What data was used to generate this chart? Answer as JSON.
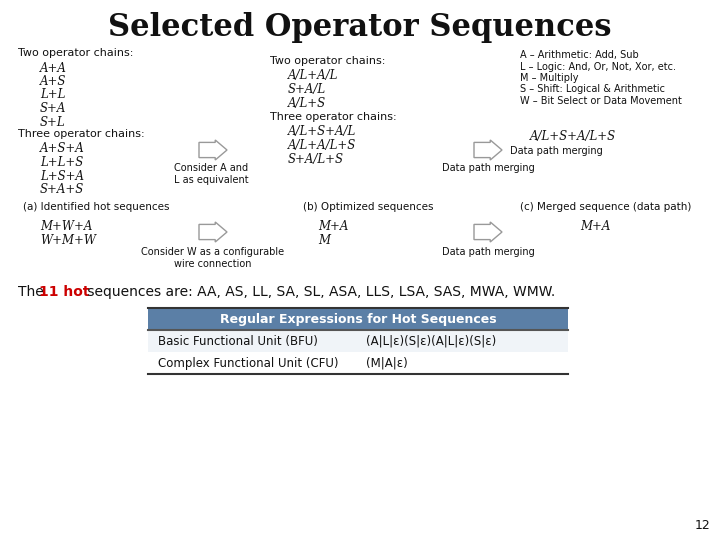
{
  "title": "Selected Operator Sequences",
  "bg_color": "#ffffff",
  "title_fontsize": 22,
  "two_op_label": "Two operator chains:",
  "two_op_items": [
    "A+A",
    "A+S",
    "L+L",
    "S+A",
    "S+L"
  ],
  "three_op_label": "Three operator chains:",
  "three_op_items": [
    "A+S+A",
    "L+L+S",
    "L+S+A",
    "S+A+S"
  ],
  "arrow1_note": "Consider A and\nL as equivalent",
  "two_op_opt_label": "Two operator chains:",
  "two_op_opt_items": [
    "A/L+A/L",
    "S+A/L",
    "A/L+S"
  ],
  "three_op_opt_label": "Three operator chains:",
  "three_op_opt_items": [
    "A/L+S+A/L",
    "A/L+A/L+S",
    "S+A/L+S"
  ],
  "merged_label": "A/L+S+A/L+S",
  "arrow2_note": "Data path merging",
  "legend_lines": [
    "A – Arithmetic: Add, Sub",
    "L – Logic: And, Or, Not, Xor, etc.",
    "M – Multiply",
    "S – Shift: Logical & Arithmetic",
    "W – Bit Select or Data Movement"
  ],
  "label_a": "(a) Identified hot sequences",
  "label_b": "(b) Optimized sequences",
  "label_c": "(c) Merged sequence (data path)",
  "row2_left_items": [
    "M+W+A",
    "W+M+W"
  ],
  "row2_arrow_note": "Consider W as a configurable\nwire connection",
  "row2_mid_items": [
    "M+A",
    "M"
  ],
  "row2_arrow2_note": "Data path merging",
  "row2_right": "M+A",
  "hot_text_pre": "The ",
  "hot_text_bold": "11 hot",
  "hot_text_post": " sequences are: AA, AS, LL, SA, SL, ASA, LLS, LSA, SAS, MWA, WMW.",
  "table_header": "Regular Expressions for Hot Sequences",
  "table_header_bg": "#5b7fa6",
  "table_header_fg": "#ffffff",
  "table_row1_label": "Basic Functional Unit (BFU)",
  "table_row1_val": "(A|L|ε)(S|ε)(A|L|ε)(S|ε)",
  "table_row2_label": "Complex Functional Unit (CFU)",
  "table_row2_val": "(M|A|ε)",
  "table_row_bg1": "#ffffff",
  "table_row_bg2": "#e8eef4",
  "page_num": "12"
}
